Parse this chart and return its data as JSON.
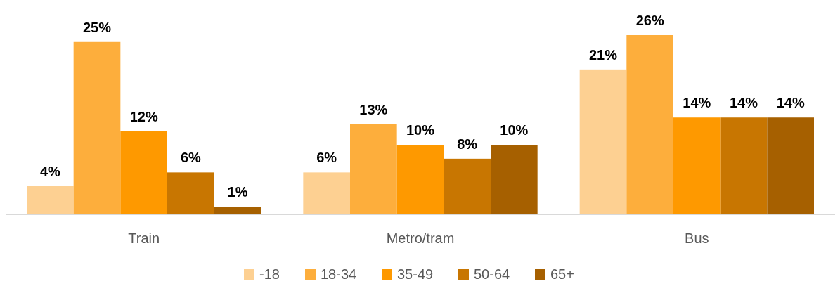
{
  "chart_data": {
    "type": "bar",
    "categories": [
      "Train",
      "Metro/tram",
      "Bus"
    ],
    "series": [
      {
        "name": "-18",
        "color": "#fdd092",
        "values": [
          4,
          6,
          21
        ],
        "value_labels": [
          "4%",
          "6%",
          "21%"
        ]
      },
      {
        "name": "18-34",
        "color": "#fdae3c",
        "values": [
          25,
          13,
          26
        ],
        "value_labels": [
          "25%",
          "13%",
          "26%"
        ]
      },
      {
        "name": "35-49",
        "color": "#fe9900",
        "values": [
          12,
          10,
          14
        ],
        "value_labels": [
          "12%",
          "10%",
          "14%"
        ]
      },
      {
        "name": "50-64",
        "color": "#c87601",
        "values": [
          6,
          8,
          14
        ],
        "value_labels": [
          "6%",
          "8%",
          "14%"
        ]
      },
      {
        "name": "65+",
        "color": "#a66000",
        "values": [
          1,
          10,
          14
        ],
        "value_labels": [
          "1%",
          "10%",
          "14%"
        ]
      }
    ],
    "legend": "bottom"
  }
}
